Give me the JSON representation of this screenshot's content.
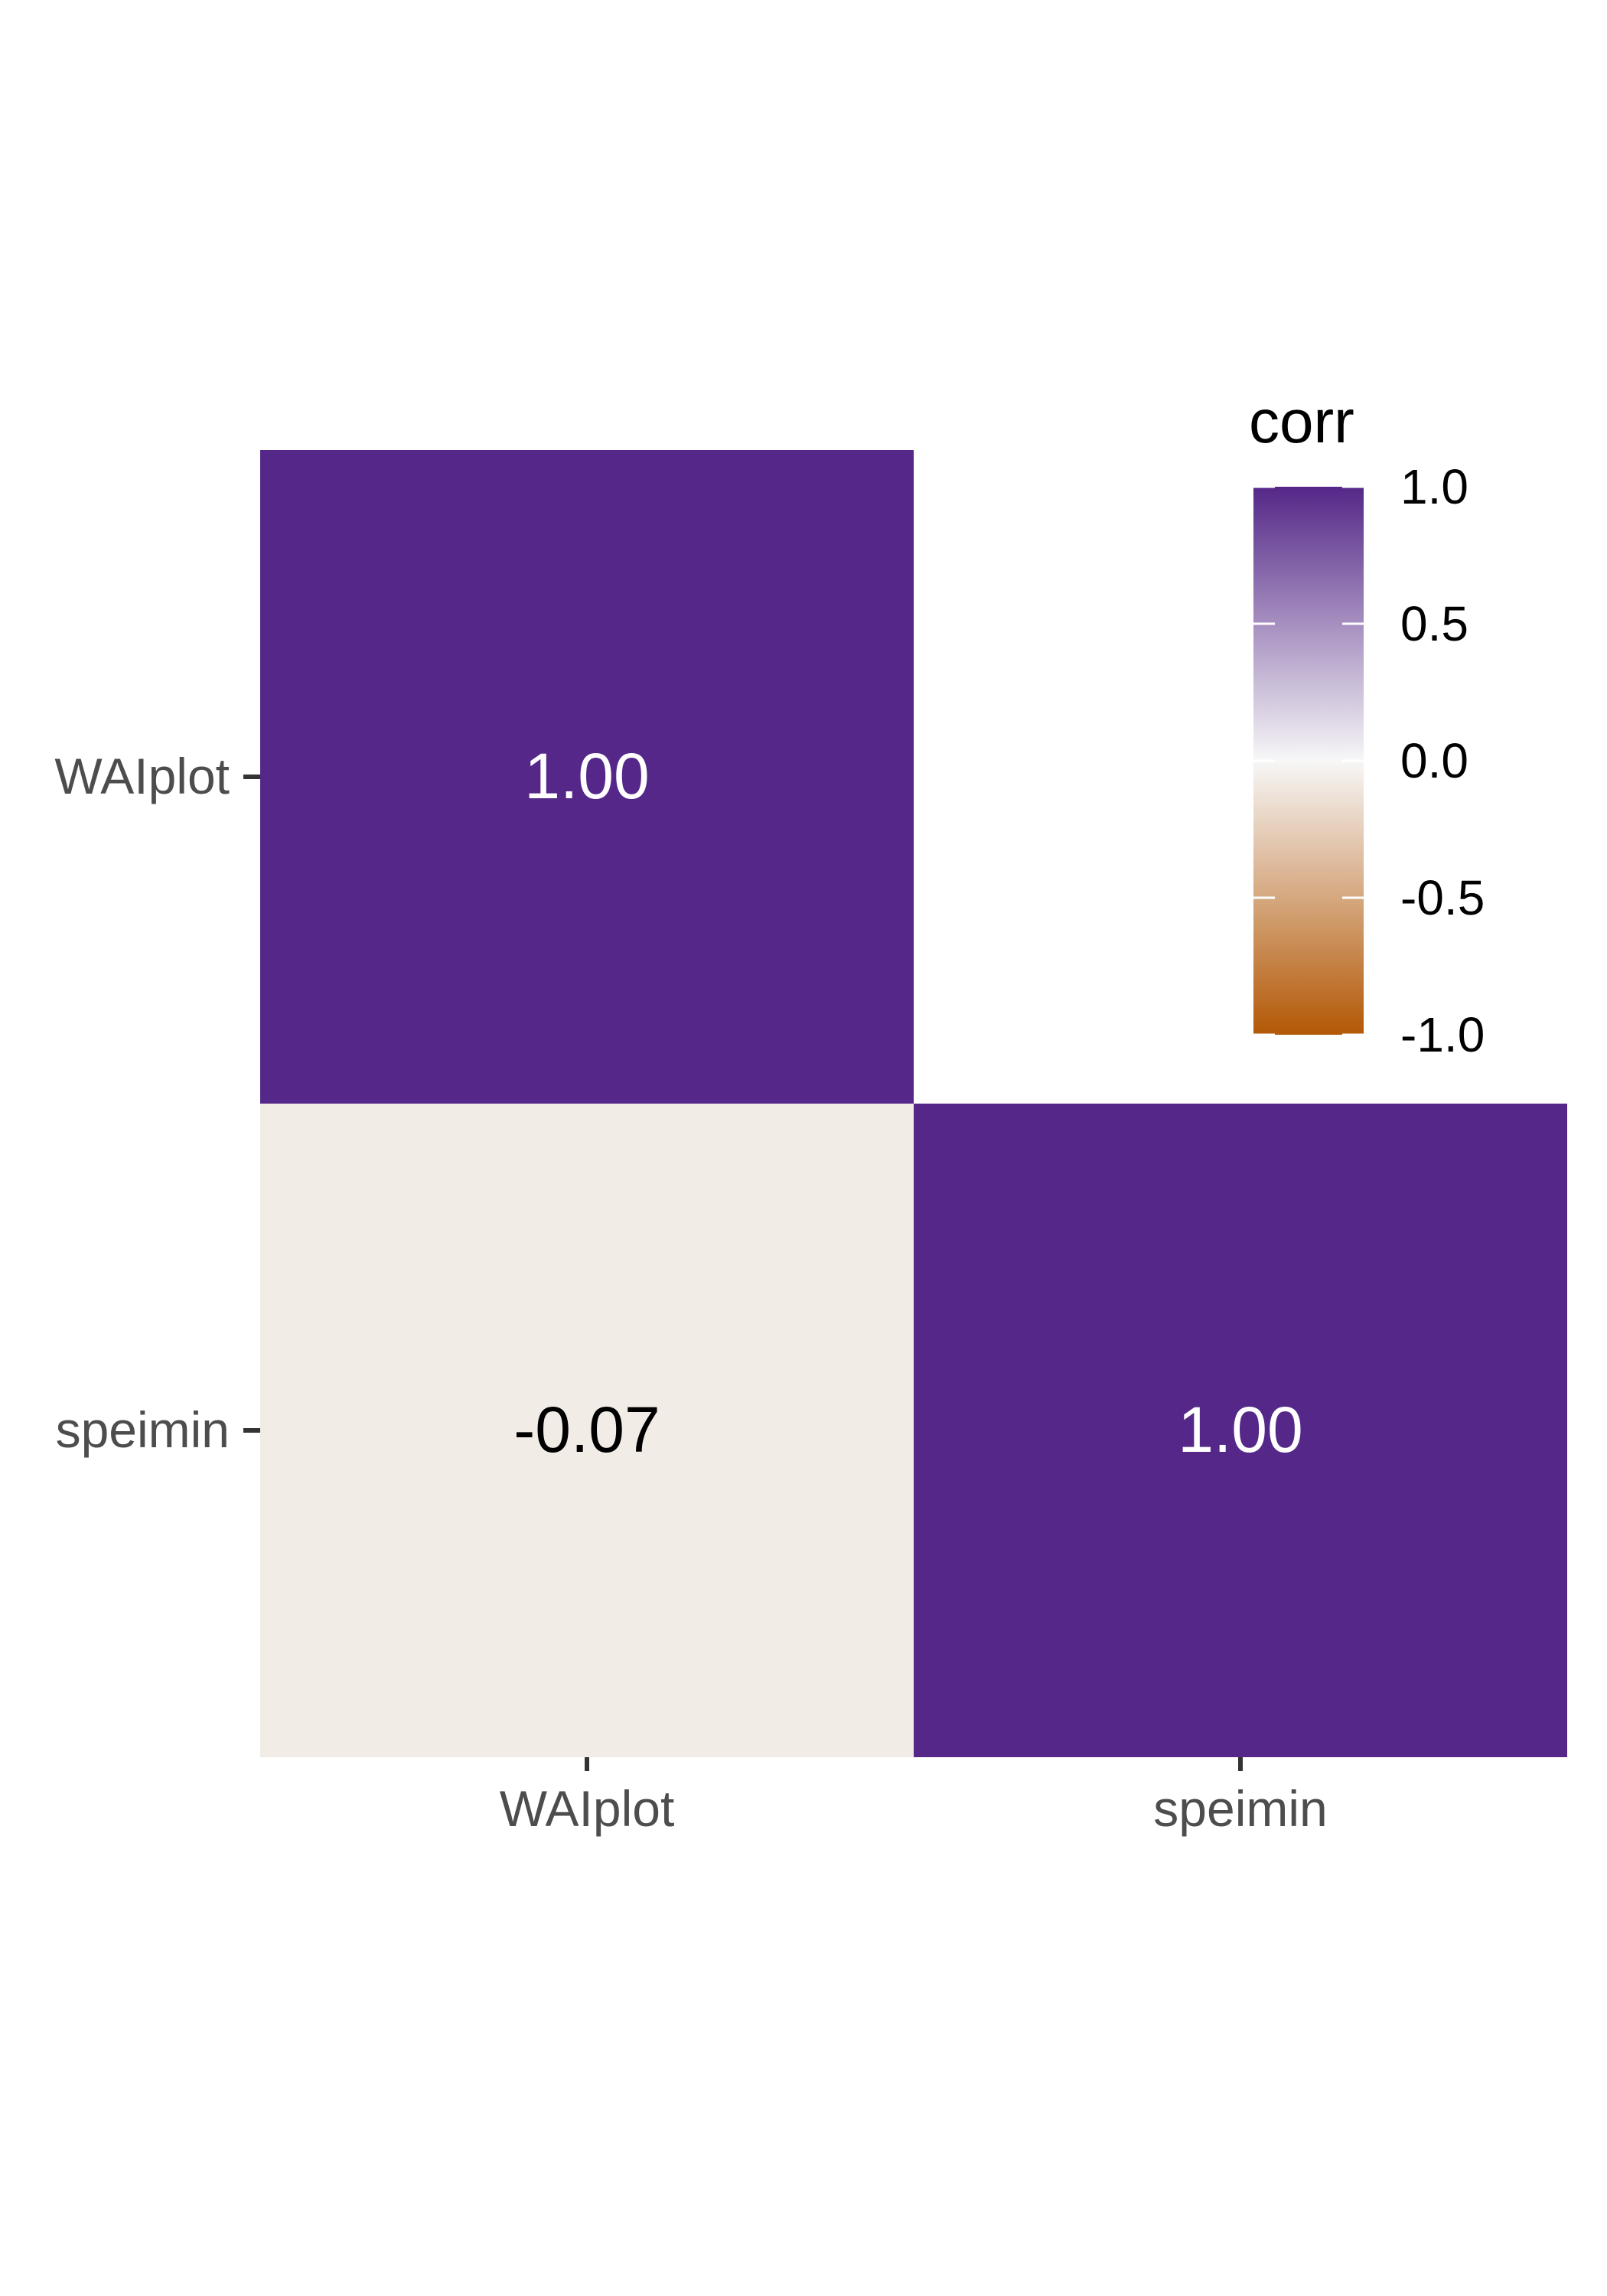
{
  "chart_data": {
    "type": "heatmap",
    "title": "",
    "xlabel": "",
    "ylabel": "",
    "x_categories": [
      "WAIplot",
      "speimin"
    ],
    "y_categories": [
      "WAIplot",
      "speimin"
    ],
    "cells": [
      {
        "x": "WAIplot",
        "y": "WAIplot",
        "value": 1.0,
        "label": "1.00"
      },
      {
        "x": "WAIplot",
        "y": "speimin",
        "value": -0.07,
        "label": "-0.07"
      },
      {
        "x": "speimin",
        "y": "speimin",
        "value": 1.0,
        "label": "1.00"
      }
    ],
    "legend": {
      "title": "corr",
      "placement": "top-right",
      "range": [
        -1.0,
        1.0
      ],
      "ticks": [
        1.0,
        0.5,
        0.0,
        -0.5,
        -1.0
      ],
      "tick_labels": [
        "1.0",
        "0.5",
        "0.0",
        "-0.5",
        "-1.0"
      ]
    },
    "colors": {
      "high": "#542788",
      "mid": "#f7f7f7",
      "low": "#b35806"
    },
    "grid": false
  }
}
